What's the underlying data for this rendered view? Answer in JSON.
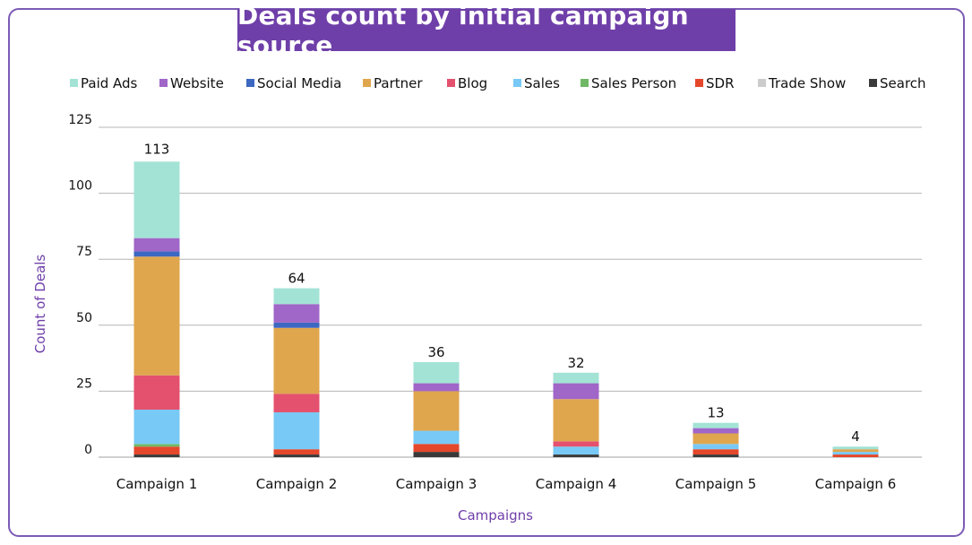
{
  "chart_data": {
    "type": "bar",
    "stacked": true,
    "title": "Deals count by initial campaign source",
    "xlabel": "Campaigns",
    "ylabel": "Count of Deals",
    "ylim": [
      0,
      125
    ],
    "yticks": [
      0,
      25,
      50,
      75,
      100,
      125
    ],
    "grid": true,
    "legend_position": "top",
    "categories": [
      "Campaign 1",
      "Campaign 2",
      "Campaign 3",
      "Campaign 4",
      "Campaign 5",
      "Campaign 6"
    ],
    "totals": [
      113,
      64,
      36,
      32,
      13,
      4
    ],
    "series": [
      {
        "name": "Search",
        "color": "#3a3a3a",
        "values": [
          1,
          1,
          2,
          1,
          1,
          0
        ]
      },
      {
        "name": "SDR",
        "color": "#e5472b",
        "values": [
          3,
          2,
          3,
          0,
          2,
          1
        ]
      },
      {
        "name": "Sales Person",
        "color": "#6fb865",
        "values": [
          1,
          0,
          0,
          0,
          0,
          0
        ]
      },
      {
        "name": "Sales",
        "color": "#78c9f5",
        "values": [
          13,
          14,
          5,
          3,
          2,
          1
        ]
      },
      {
        "name": "Blog",
        "color": "#e4516e",
        "values": [
          13,
          7,
          0,
          2,
          0,
          0
        ]
      },
      {
        "name": "Partner",
        "color": "#e0a64e",
        "values": [
          45,
          25,
          15,
          16,
          4,
          1
        ]
      },
      {
        "name": "Social Media",
        "color": "#3d68c2",
        "values": [
          2,
          2,
          0,
          0,
          0,
          0
        ]
      },
      {
        "name": "Website",
        "color": "#a066c8",
        "values": [
          5,
          7,
          3,
          6,
          2,
          0
        ]
      },
      {
        "name": "Trade Show",
        "color": "#cccccc",
        "values": [
          0,
          0,
          0,
          0,
          0,
          0
        ]
      },
      {
        "name": "Paid Ads",
        "color": "#a3e3d6",
        "values": [
          29,
          6,
          8,
          4,
          2,
          1
        ]
      }
    ],
    "legend_order": [
      "Paid Ads",
      "Website",
      "Social Media",
      "Partner",
      "Blog",
      "Sales",
      "Sales Person",
      "SDR",
      "Trade Show",
      "Search"
    ]
  },
  "colors": {
    "frame_border": "#7b5bb5",
    "title_background": "#6f3fa9",
    "title_text": "#ffffff",
    "axis_title": "#6f3fa9",
    "gridline": "#b5b5b5"
  }
}
